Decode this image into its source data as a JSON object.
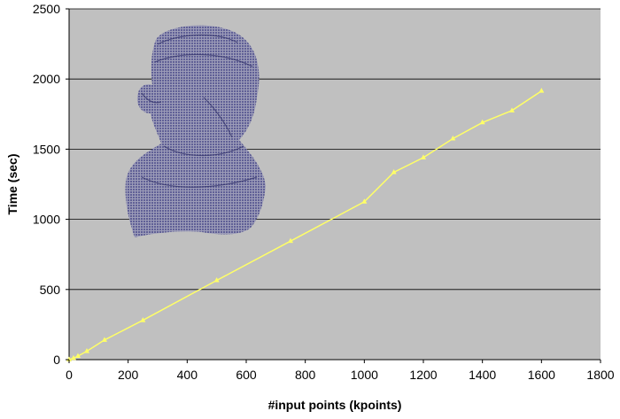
{
  "chart_data": {
    "type": "line",
    "title": "",
    "xlabel": "#input points (kpoints)",
    "ylabel": "Time (sec)",
    "xlim": [
      0,
      1800
    ],
    "ylim": [
      0,
      2500
    ],
    "x_ticks": [
      0,
      200,
      400,
      600,
      800,
      1000,
      1200,
      1400,
      1600,
      1800
    ],
    "y_ticks": [
      0,
      500,
      1000,
      1500,
      2000,
      2500
    ],
    "grid": "horizontal",
    "legend": "none",
    "colors": {
      "plot_bg": "#c0c0c0",
      "line": "#ffff66",
      "gridline": "#000000",
      "scan_points": "#2e2e7a"
    },
    "inset": "3D point-cloud scan of a child's head and shoulders",
    "series": [
      {
        "x": [
          0,
          15,
          30,
          60,
          120,
          250,
          500,
          750,
          1000,
          1100,
          1200,
          1300,
          1400,
          1500,
          1600
        ],
        "y": [
          0,
          10,
          25,
          60,
          140,
          280,
          565,
          845,
          1125,
          1335,
          1440,
          1575,
          1690,
          1775,
          1915
        ]
      }
    ]
  }
}
